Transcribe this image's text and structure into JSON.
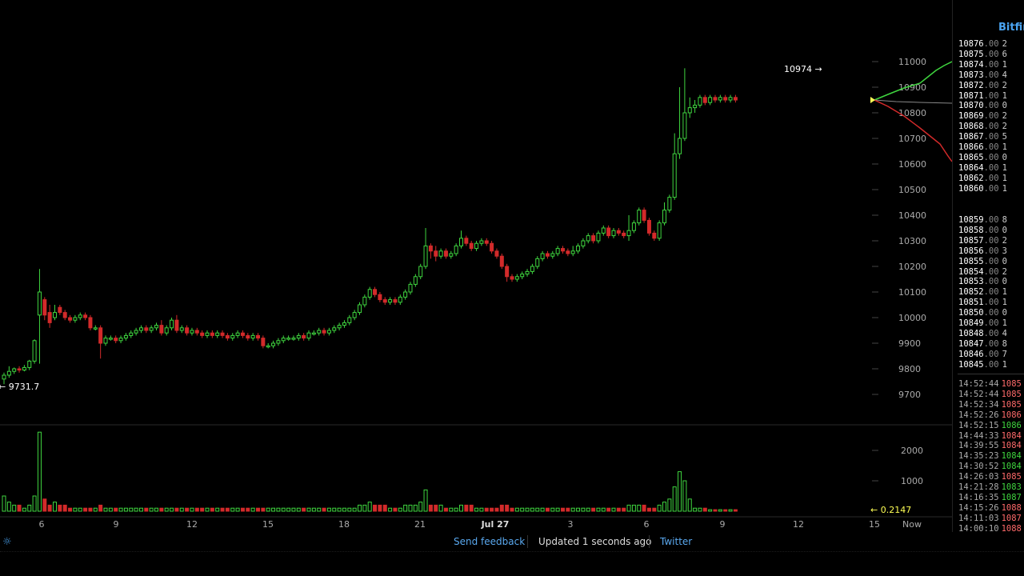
{
  "chart_data": {
    "type": "candlestick",
    "price_axis": {
      "ticks": [
        9700,
        9800,
        9900,
        10000,
        10100,
        10200,
        10300,
        10400,
        10500,
        10600,
        10700,
        10800,
        10900,
        11000
      ],
      "range": [
        9600,
        11060
      ]
    },
    "volume_axis": {
      "ticks": [
        1000,
        2000
      ],
      "range": [
        0,
        2600
      ]
    },
    "x_labels": [
      "6",
      "9",
      "12",
      "15",
      "18",
      "21",
      "Jul 27",
      "3",
      "6",
      "9",
      "12",
      "15",
      "Now"
    ],
    "annotations": {
      "high": "10974 →",
      "low": "← 9731.7",
      "current_volume": "← 0.2147"
    },
    "candles": [
      [
        9760,
        9775,
        9740,
        9785,
        0.5
      ],
      [
        9775,
        9790,
        9765,
        9810,
        0.3
      ],
      [
        9790,
        9800,
        9780,
        9805,
        0.2
      ],
      [
        9800,
        9795,
        9785,
        9810,
        0.2
      ],
      [
        9795,
        9805,
        9790,
        9815,
        0.1
      ],
      [
        9805,
        9830,
        9795,
        9835,
        0.2
      ],
      [
        9830,
        9910,
        9820,
        9915,
        0.5
      ],
      [
        10010,
        10100,
        9820,
        10190,
        2.6
      ],
      [
        10070,
        10010,
        9990,
        10080,
        0.4
      ],
      [
        10020,
        9980,
        9960,
        10050,
        0.2
      ],
      [
        10000,
        10020,
        9990,
        10050,
        0.3
      ],
      [
        10040,
        10020,
        10010,
        10050,
        0.2
      ],
      [
        10020,
        10000,
        9990,
        10030,
        0.2
      ],
      [
        10000,
        9990,
        9980,
        10010,
        0.1
      ],
      [
        9990,
        10000,
        9980,
        10010,
        0.1
      ],
      [
        10000,
        10010,
        9990,
        10020,
        0.1
      ],
      [
        10010,
        10000,
        9990,
        10020,
        0.1
      ],
      [
        10000,
        9960,
        9950,
        10010,
        0.1
      ],
      [
        9960,
        9960,
        9950,
        9970,
        0.1
      ],
      [
        9960,
        9900,
        9840,
        9970,
        0.2
      ],
      [
        9900,
        9920,
        9890,
        9930,
        0.1
      ],
      [
        9920,
        9920,
        9910,
        9930,
        0.1
      ],
      [
        9920,
        9910,
        9900,
        9930,
        0.1
      ],
      [
        9910,
        9920,
        9900,
        9930,
        0.1
      ],
      [
        9920,
        9930,
        9910,
        9940,
        0.1
      ],
      [
        9930,
        9940,
        9920,
        9950,
        0.1
      ],
      [
        9940,
        9950,
        9930,
        9960,
        0.1
      ],
      [
        9950,
        9960,
        9940,
        9970,
        0.1
      ],
      [
        9960,
        9950,
        9940,
        9970,
        0.1
      ],
      [
        9950,
        9960,
        9940,
        9970,
        0.1
      ],
      [
        9960,
        9970,
        9950,
        9980,
        0.1
      ],
      [
        9970,
        9940,
        9930,
        9990,
        0.1
      ],
      [
        9940,
        9960,
        9930,
        9970,
        0.1
      ],
      [
        9960,
        9990,
        9950,
        10000,
        0.1
      ],
      [
        9990,
        9950,
        9940,
        10010,
        0.1
      ],
      [
        9950,
        9960,
        9940,
        9970,
        0.1
      ],
      [
        9960,
        9940,
        9930,
        9970,
        0.1
      ],
      [
        9940,
        9950,
        9930,
        9960,
        0.1
      ],
      [
        9950,
        9940,
        9930,
        9960,
        0.1
      ],
      [
        9940,
        9930,
        9920,
        9950,
        0.1
      ],
      [
        9930,
        9940,
        9920,
        9950,
        0.1
      ],
      [
        9940,
        9930,
        9920,
        9950,
        0.1
      ],
      [
        9930,
        9940,
        9920,
        9950,
        0.1
      ],
      [
        9940,
        9930,
        9920,
        9950,
        0.1
      ],
      [
        9930,
        9920,
        9910,
        9940,
        0.1
      ],
      [
        9920,
        9930,
        9910,
        9940,
        0.1
      ],
      [
        9930,
        9940,
        9920,
        9950,
        0.1
      ],
      [
        9940,
        9930,
        9920,
        9950,
        0.1
      ],
      [
        9930,
        9920,
        9910,
        9940,
        0.1
      ],
      [
        9920,
        9930,
        9910,
        9940,
        0.1
      ],
      [
        9930,
        9920,
        9910,
        9940,
        0.1
      ],
      [
        9920,
        9890,
        9880,
        9930,
        0.1
      ],
      [
        9890,
        9890,
        9880,
        9900,
        0.1
      ],
      [
        9890,
        9900,
        9880,
        9910,
        0.1
      ],
      [
        9900,
        9910,
        9890,
        9920,
        0.1
      ],
      [
        9910,
        9920,
        9900,
        9930,
        0.1
      ],
      [
        9920,
        9920,
        9910,
        9930,
        0.1
      ],
      [
        9920,
        9920,
        9910,
        9930,
        0.1
      ],
      [
        9920,
        9930,
        9910,
        9940,
        0.1
      ],
      [
        9930,
        9920,
        9910,
        9940,
        0.1
      ],
      [
        9920,
        9940,
        9910,
        9950,
        0.1
      ],
      [
        9940,
        9940,
        9930,
        9950,
        0.1
      ],
      [
        9940,
        9950,
        9930,
        9960,
        0.1
      ],
      [
        9950,
        9940,
        9930,
        9960,
        0.1
      ],
      [
        9940,
        9950,
        9930,
        9960,
        0.1
      ],
      [
        9950,
        9960,
        9940,
        9970,
        0.1
      ],
      [
        9960,
        9970,
        9950,
        9980,
        0.1
      ],
      [
        9970,
        9980,
        9960,
        9990,
        0.1
      ],
      [
        9980,
        10000,
        9970,
        10010,
        0.1
      ],
      [
        10000,
        10020,
        9990,
        10030,
        0.1
      ],
      [
        10020,
        10050,
        10010,
        10060,
        0.2
      ],
      [
        10050,
        10080,
        10040,
        10090,
        0.2
      ],
      [
        10080,
        10110,
        10070,
        10120,
        0.3
      ],
      [
        10110,
        10090,
        10080,
        10120,
        0.2
      ],
      [
        10090,
        10070,
        10060,
        10100,
        0.2
      ],
      [
        10070,
        10060,
        10050,
        10080,
        0.2
      ],
      [
        10060,
        10070,
        10050,
        10080,
        0.1
      ],
      [
        10070,
        10060,
        10050,
        10080,
        0.1
      ],
      [
        10060,
        10080,
        10050,
        10090,
        0.1
      ],
      [
        10080,
        10100,
        10070,
        10110,
        0.2
      ],
      [
        10100,
        10130,
        10090,
        10140,
        0.2
      ],
      [
        10130,
        10160,
        10120,
        10170,
        0.2
      ],
      [
        10160,
        10200,
        10150,
        10210,
        0.3
      ],
      [
        10200,
        10280,
        10190,
        10350,
        0.7
      ],
      [
        10280,
        10260,
        10230,
        10290,
        0.2
      ],
      [
        10260,
        10240,
        10220,
        10280,
        0.2
      ],
      [
        10240,
        10260,
        10230,
        10270,
        0.2
      ],
      [
        10260,
        10240,
        10230,
        10270,
        0.1
      ],
      [
        10240,
        10250,
        10230,
        10260,
        0.1
      ],
      [
        10250,
        10280,
        10240,
        10290,
        0.1
      ],
      [
        10280,
        10310,
        10270,
        10340,
        0.2
      ],
      [
        10310,
        10290,
        10280,
        10320,
        0.2
      ],
      [
        10290,
        10270,
        10260,
        10300,
        0.2
      ],
      [
        10270,
        10290,
        10260,
        10300,
        0.1
      ],
      [
        10290,
        10300,
        10280,
        10310,
        0.1
      ],
      [
        10300,
        10290,
        10280,
        10310,
        0.1
      ],
      [
        10290,
        10260,
        10250,
        10300,
        0.1
      ],
      [
        10260,
        10240,
        10230,
        10270,
        0.1
      ],
      [
        10240,
        10200,
        10190,
        10250,
        0.2
      ],
      [
        10200,
        10160,
        10140,
        10210,
        0.2
      ],
      [
        10160,
        10150,
        10140,
        10170,
        0.1
      ],
      [
        10150,
        10160,
        10140,
        10170,
        0.1
      ],
      [
        10160,
        10170,
        10150,
        10180,
        0.1
      ],
      [
        10170,
        10180,
        10160,
        10190,
        0.1
      ],
      [
        10180,
        10200,
        10170,
        10210,
        0.1
      ],
      [
        10200,
        10230,
        10190,
        10240,
        0.1
      ],
      [
        10230,
        10250,
        10220,
        10260,
        0.1
      ],
      [
        10250,
        10240,
        10230,
        10260,
        0.1
      ],
      [
        10240,
        10250,
        10230,
        10260,
        0.1
      ],
      [
        10250,
        10270,
        10240,
        10280,
        0.1
      ],
      [
        10270,
        10260,
        10250,
        10280,
        0.1
      ],
      [
        10260,
        10250,
        10240,
        10270,
        0.1
      ],
      [
        10250,
        10260,
        10240,
        10280,
        0.1
      ],
      [
        10260,
        10280,
        10250,
        10290,
        0.1
      ],
      [
        10280,
        10300,
        10270,
        10310,
        0.1
      ],
      [
        10300,
        10320,
        10290,
        10330,
        0.1
      ],
      [
        10320,
        10300,
        10290,
        10330,
        0.1
      ],
      [
        10300,
        10330,
        10290,
        10340,
        0.1
      ],
      [
        10330,
        10350,
        10320,
        10360,
        0.1
      ],
      [
        10350,
        10320,
        10310,
        10360,
        0.1
      ],
      [
        10320,
        10340,
        10310,
        10350,
        0.1
      ],
      [
        10340,
        10330,
        10320,
        10350,
        0.1
      ],
      [
        10330,
        10320,
        10310,
        10340,
        0.1
      ],
      [
        10320,
        10340,
        10300,
        10400,
        0.2
      ],
      [
        10340,
        10370,
        10330,
        10380,
        0.2
      ],
      [
        10370,
        10420,
        10360,
        10430,
        0.2
      ],
      [
        10420,
        10380,
        10370,
        10430,
        0.2
      ],
      [
        10380,
        10330,
        10320,
        10390,
        0.1
      ],
      [
        10330,
        10310,
        10300,
        10340,
        0.1
      ],
      [
        10310,
        10370,
        10300,
        10380,
        0.2
      ],
      [
        10370,
        10420,
        10360,
        10450,
        0.3
      ],
      [
        10420,
        10470,
        10410,
        10480,
        0.4
      ],
      [
        10470,
        10640,
        10460,
        10720,
        0.8
      ],
      [
        10640,
        10700,
        10620,
        10900,
        1.3
      ],
      [
        10700,
        10800,
        10690,
        10974,
        1.0
      ],
      [
        10800,
        10820,
        10780,
        10860,
        0.4
      ],
      [
        10820,
        10830,
        10800,
        10850,
        0.1
      ],
      [
        10830,
        10860,
        10820,
        10870,
        0.1
      ],
      [
        10860,
        10840,
        10830,
        10870,
        0.1
      ],
      [
        10840,
        10860,
        10830,
        10870,
        0.05
      ],
      [
        10860,
        10850,
        10840,
        10870,
        0.05
      ],
      [
        10850,
        10860,
        10840,
        10870,
        0.05
      ],
      [
        10860,
        10850,
        10840,
        10870,
        0.05
      ],
      [
        10850,
        10860,
        10840,
        10870,
        0.05
      ],
      [
        10860,
        10850,
        10840,
        10870,
        0.05
      ]
    ]
  },
  "sidebar": {
    "exchange": "Bitfinex",
    "asks": [
      {
        "int": "10876",
        "dec": ".00",
        "size": "2"
      },
      {
        "int": "10875",
        "dec": ".00",
        "size": "6"
      },
      {
        "int": "10874",
        "dec": ".00",
        "size": "1"
      },
      {
        "int": "10873",
        "dec": ".00",
        "size": "4"
      },
      {
        "int": "10872",
        "dec": ".00",
        "size": "2"
      },
      {
        "int": "10871",
        "dec": ".00",
        "size": "1"
      },
      {
        "int": "10870",
        "dec": ".00",
        "size": "0"
      },
      {
        "int": "10869",
        "dec": ".00",
        "size": "2"
      },
      {
        "int": "10868",
        "dec": ".00",
        "size": "2"
      },
      {
        "int": "10867",
        "dec": ".00",
        "size": "5"
      },
      {
        "int": "10866",
        "dec": ".00",
        "size": "1"
      },
      {
        "int": "10865",
        "dec": ".00",
        "size": "0"
      },
      {
        "int": "10864",
        "dec": ".00",
        "size": "1"
      },
      {
        "int": "10862",
        "dec": ".00",
        "size": "1"
      },
      {
        "int": "10860",
        "dec": ".00",
        "size": "1"
      }
    ],
    "bids": [
      {
        "int": "10859",
        "dec": ".00",
        "size": "8"
      },
      {
        "int": "10858",
        "dec": ".00",
        "size": "0"
      },
      {
        "int": "10857",
        "dec": ".00",
        "size": "2"
      },
      {
        "int": "10856",
        "dec": ".00",
        "size": "3"
      },
      {
        "int": "10855",
        "dec": ".00",
        "size": "0"
      },
      {
        "int": "10854",
        "dec": ".00",
        "size": "2"
      },
      {
        "int": "10853",
        "dec": ".00",
        "size": "0"
      },
      {
        "int": "10852",
        "dec": ".00",
        "size": "1"
      },
      {
        "int": "10851",
        "dec": ".00",
        "size": "1"
      },
      {
        "int": "10850",
        "dec": ".00",
        "size": "0"
      },
      {
        "int": "10849",
        "dec": ".00",
        "size": "1"
      },
      {
        "int": "10848",
        "dec": ".00",
        "size": "4"
      },
      {
        "int": "10847",
        "dec": ".00",
        "size": "8"
      },
      {
        "int": "10846",
        "dec": ".00",
        "size": "7"
      },
      {
        "int": "10845",
        "dec": ".00",
        "size": "1"
      }
    ],
    "trades": [
      {
        "time": "14:52:44",
        "price": "1085",
        "side": "sell"
      },
      {
        "time": "14:52:44",
        "price": "1085",
        "side": "sell"
      },
      {
        "time": "14:52:34",
        "price": "1085",
        "side": "sell"
      },
      {
        "time": "14:52:26",
        "price": "1086",
        "side": "sell"
      },
      {
        "time": "14:52:15",
        "price": "1086",
        "side": "buy"
      },
      {
        "time": "14:44:33",
        "price": "1084",
        "side": "sell"
      },
      {
        "time": "14:39:55",
        "price": "1084",
        "side": "sell"
      },
      {
        "time": "14:35:23",
        "price": "1084",
        "side": "buy"
      },
      {
        "time": "14:30:52",
        "price": "1084",
        "side": "buy"
      },
      {
        "time": "14:26:03",
        "price": "1085",
        "side": "sell"
      },
      {
        "time": "14:21:28",
        "price": "1083",
        "side": "buy"
      },
      {
        "time": "14:16:35",
        "price": "1087",
        "side": "buy"
      },
      {
        "time": "14:15:26",
        "price": "1088",
        "side": "sell"
      },
      {
        "time": "14:11:03",
        "price": "1087",
        "side": "sell"
      },
      {
        "time": "14:00:10",
        "price": "1088",
        "side": "sell"
      }
    ]
  },
  "footer": {
    "feedback": "Send feedback",
    "updated": "Updated 1 seconds ago",
    "twitter": "Twitter"
  },
  "colors": {
    "up": "#3fd53f",
    "down": "#d22a2a",
    "link": "#5aa9f0",
    "annot": "#ffff55"
  }
}
